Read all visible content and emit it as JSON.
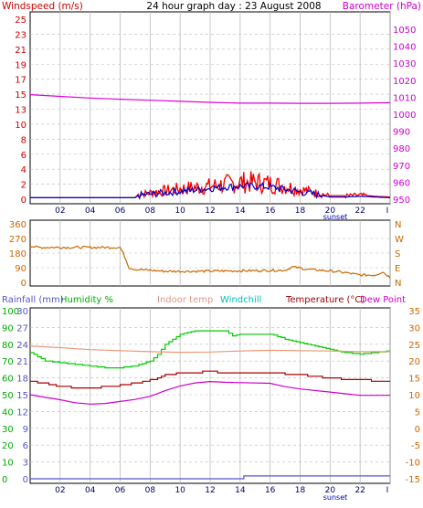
{
  "chart_data": [
    {
      "type": "line",
      "title": "24 hour graph day : 23 August 2008",
      "left_axis_label": "Windspeed (m/s)",
      "right_axis_label": "Barometer (hPa)",
      "x_ticks": [
        "02",
        "04",
        "06",
        "08",
        "10",
        "12",
        "14",
        "16",
        "18",
        "20",
        "22",
        "I"
      ],
      "x_note": "sunset",
      "left_ticks": [
        "0",
        "2",
        "4",
        "6",
        "8",
        "10",
        "13",
        "15",
        "17",
        "19",
        "21",
        "23",
        "25"
      ],
      "right_ticks": [
        "950",
        "960",
        "970",
        "980",
        "990",
        "1000",
        "1010",
        "1020",
        "1030",
        "1040",
        "1050"
      ],
      "ylim_left": [
        0,
        25
      ],
      "ylim_right": [
        950,
        1050
      ],
      "colors": {
        "left_label": "#cc0000",
        "right_label": "#cc00cc"
      },
      "series": [
        {
          "key": "gust",
          "color": "#ee0000",
          "axis": "left",
          "style": "spiky",
          "points": [
            [
              0,
              0.2
            ],
            [
              7.0,
              0.2
            ],
            [
              7.2,
              0.7
            ],
            [
              8.0,
              1.0
            ],
            [
              9.0,
              1.3
            ],
            [
              10.0,
              1.6
            ],
            [
              11.0,
              1.8
            ],
            [
              12.0,
              2.0
            ],
            [
              13.0,
              2.3
            ],
            [
              14.0,
              2.6
            ],
            [
              15.0,
              2.6
            ],
            [
              16.0,
              2.4
            ],
            [
              17.0,
              2.0
            ],
            [
              18.0,
              1.5
            ],
            [
              19.0,
              1.0
            ],
            [
              20.0,
              0.5
            ],
            [
              21.0,
              0.5
            ],
            [
              22.0,
              0.6
            ],
            [
              23.0,
              0.4
            ],
            [
              24.0,
              0.3
            ]
          ]
        },
        {
          "key": "wind",
          "color": "#0000cc",
          "axis": "left",
          "style": "noisy",
          "points": [
            [
              0,
              0.2
            ],
            [
              7.0,
              0.2
            ],
            [
              7.2,
              0.5
            ],
            [
              8.0,
              0.7
            ],
            [
              9.0,
              0.9
            ],
            [
              10.0,
              1.1
            ],
            [
              11.0,
              1.3
            ],
            [
              12.0,
              1.5
            ],
            [
              13.0,
              1.7
            ],
            [
              14.0,
              1.8
            ],
            [
              15.0,
              1.8
            ],
            [
              16.0,
              1.7
            ],
            [
              17.0,
              1.4
            ],
            [
              18.0,
              1.0
            ],
            [
              19.0,
              0.7
            ],
            [
              20.0,
              0.3
            ],
            [
              21.0,
              0.3
            ],
            [
              22.0,
              0.4
            ],
            [
              23.0,
              0.3
            ],
            [
              24.0,
              0.2
            ]
          ]
        },
        {
          "key": "barometer",
          "color": "#dd00dd",
          "axis": "right",
          "style": "smooth",
          "points": [
            [
              0,
              1011.5
            ],
            [
              2,
              1010.5
            ],
            [
              4,
              1009.5
            ],
            [
              6,
              1008.8
            ],
            [
              8,
              1008.2
            ],
            [
              10,
              1007.6
            ],
            [
              12,
              1007.0
            ],
            [
              14,
              1006.5
            ],
            [
              16,
              1006.5
            ],
            [
              18,
              1006.4
            ],
            [
              20,
              1006.4
            ],
            [
              22,
              1006.5
            ],
            [
              24,
              1006.8
            ]
          ]
        }
      ]
    },
    {
      "type": "line",
      "title": "",
      "left_ticks": [
        "0",
        "90",
        "180",
        "270",
        "360"
      ],
      "right_ticks": [
        "N",
        "E",
        "S",
        "W",
        "N"
      ],
      "ylim": [
        0,
        360
      ],
      "x_ticks": [],
      "series": [
        {
          "key": "direction",
          "color": "#cc6600",
          "axis": "left",
          "style": "noisy",
          "points": [
            [
              0,
              225
            ],
            [
              0.5,
              215
            ],
            [
              6.0,
              215
            ],
            [
              6.3,
              160
            ],
            [
              6.6,
              90
            ],
            [
              7.0,
              80
            ],
            [
              9.0,
              68
            ],
            [
              11.0,
              68
            ],
            [
              13.0,
              70
            ],
            [
              15.0,
              72
            ],
            [
              17.0,
              75
            ],
            [
              17.5,
              95
            ],
            [
              18.5,
              80
            ],
            [
              20.0,
              70
            ],
            [
              21.0,
              60
            ],
            [
              22.0,
              45
            ],
            [
              23.0,
              45
            ],
            [
              23.5,
              65
            ],
            [
              24.0,
              30
            ]
          ]
        }
      ]
    },
    {
      "type": "line",
      "title": "",
      "labels": [
        "Rainfall (mm)",
        "Humidity %",
        "Indoor temp",
        "Windchill",
        "Temperature (°C)",
        "Dew Point"
      ],
      "colors": {
        "rainfall": "#5555cc",
        "humidity": "#00aa00",
        "indoor": "#dd9988",
        "windchill": "#00bbbb",
        "temperature": "#990000",
        "dewpoint": "#cc00cc"
      },
      "rain_ticks": [
        "0",
        "3",
        "6",
        "9",
        "12",
        "15",
        "18",
        "21",
        "24",
        "27",
        "30"
      ],
      "humidity_ticks": [
        "0",
        "10",
        "20",
        "30",
        "40",
        "50",
        "60",
        "70",
        "80",
        "90",
        "100"
      ],
      "temp_ticks": [
        "-15",
        "-10",
        "-5",
        "0",
        "5",
        "10",
        "15",
        "20",
        "25",
        "30",
        "35"
      ],
      "x_ticks": [
        "02",
        "04",
        "06",
        "08",
        "10",
        "12",
        "14",
        "16",
        "18",
        "20",
        "22",
        "I"
      ],
      "x_note": "sunset",
      "ylim_temp": [
        -15,
        35
      ],
      "ylim_humidity": [
        0,
        100
      ],
      "ylim_rain": [
        0,
        30
      ],
      "series": [
        {
          "key": "humidity",
          "color": "#00cc00",
          "axis": "humidity",
          "style": "stepped",
          "points": [
            [
              0,
              75
            ],
            [
              1,
              70
            ],
            [
              2,
              69
            ],
            [
              3,
              68
            ],
            [
              4,
              67
            ],
            [
              5,
              66
            ],
            [
              6,
              66
            ],
            [
              7,
              67
            ],
            [
              8,
              70
            ],
            [
              8.5,
              74
            ],
            [
              9,
              80
            ],
            [
              10,
              86
            ],
            [
              11,
              88
            ],
            [
              12,
              88
            ],
            [
              13,
              88
            ],
            [
              13.5,
              85
            ],
            [
              14,
              86
            ],
            [
              15,
              86
            ],
            [
              16,
              86
            ],
            [
              17,
              83
            ],
            [
              18,
              81
            ],
            [
              19,
              79
            ],
            [
              20,
              77
            ],
            [
              21,
              75
            ],
            [
              22,
              74
            ],
            [
              23,
              75
            ],
            [
              24,
              76
            ]
          ]
        },
        {
          "key": "indoor",
          "color": "#ee9977",
          "axis": "temp",
          "style": "smooth",
          "points": [
            [
              0,
              24.5
            ],
            [
              2,
              24.0
            ],
            [
              4,
              23.4
            ],
            [
              6,
              23.1
            ],
            [
              8,
              22.8
            ],
            [
              10,
              22.6
            ],
            [
              12,
              22.7
            ],
            [
              14,
              23.0
            ],
            [
              16,
              23.2
            ],
            [
              18,
              23.1
            ],
            [
              20,
              23.0
            ],
            [
              22,
              22.8
            ],
            [
              24,
              22.8
            ]
          ]
        },
        {
          "key": "temperature",
          "color": "#aa0000",
          "axis": "temp",
          "style": "stepped",
          "points": [
            [
              0,
              14
            ],
            [
              2,
              12.5
            ],
            [
              3,
              12
            ],
            [
              4,
              11.8
            ],
            [
              5,
              12.4
            ],
            [
              6,
              12.8
            ],
            [
              7,
              13.5
            ],
            [
              8,
              14.3
            ],
            [
              9,
              15.8
            ],
            [
              10,
              16.4
            ],
            [
              11,
              16.7
            ],
            [
              12,
              16.8
            ],
            [
              13,
              16.6
            ],
            [
              14,
              16.5
            ],
            [
              16,
              16.4
            ],
            [
              18,
              16.0
            ],
            [
              19,
              15.4
            ],
            [
              20,
              15.0
            ],
            [
              21,
              14.5
            ],
            [
              22,
              14.3
            ],
            [
              23,
              14.2
            ],
            [
              24,
              14.2
            ]
          ]
        },
        {
          "key": "dewpoint",
          "color": "#cc00cc",
          "axis": "temp",
          "style": "smooth",
          "points": [
            [
              0,
              10.0
            ],
            [
              1,
              9.2
            ],
            [
              2,
              8.5
            ],
            [
              3,
              7.6
            ],
            [
              4,
              7.2
            ],
            [
              5,
              7.4
            ],
            [
              6,
              8.0
            ],
            [
              7,
              8.6
            ],
            [
              8,
              9.5
            ],
            [
              9,
              11.2
            ],
            [
              10,
              12.6
            ],
            [
              11,
              13.5
            ],
            [
              12,
              13.9
            ],
            [
              13,
              13.7
            ],
            [
              14,
              13.6
            ],
            [
              16,
              13.4
            ],
            [
              17,
              12.4
            ],
            [
              18,
              11.7
            ],
            [
              20,
              10.8
            ],
            [
              22,
              9.8
            ],
            [
              24,
              9.8
            ]
          ]
        },
        {
          "key": "rainfall",
          "color": "#5555cc",
          "axis": "rain",
          "style": "stepped",
          "points": [
            [
              0,
              0
            ],
            [
              14.0,
              0
            ],
            [
              14.3,
              0.4
            ],
            [
              16.0,
              0.4
            ],
            [
              17.0,
              0.6
            ],
            [
              24.0,
              0.6
            ]
          ]
        }
      ]
    }
  ]
}
